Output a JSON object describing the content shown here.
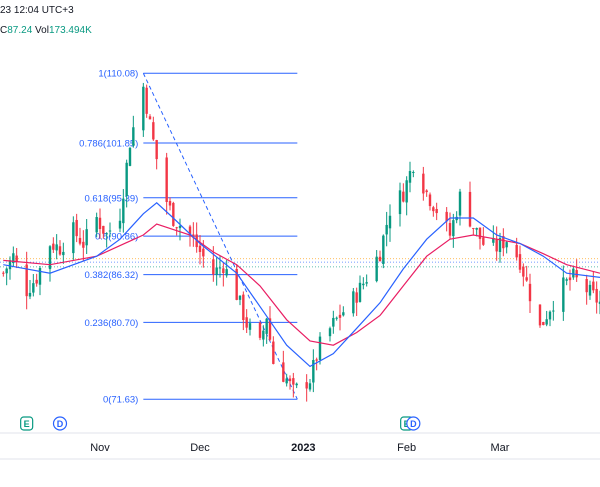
{
  "header": {
    "datetime": "23 12:04 UTC+3",
    "close_label": "C",
    "close_value": "87.24",
    "volume_label": "Vol",
    "volume_value": "173.494K"
  },
  "colors": {
    "up": "#089981",
    "down": "#f23645",
    "fib": "#2962ff",
    "ma_fast": "#2962ff",
    "ma_slow": "#e91e63",
    "earnings_badge": "#089981",
    "dividend_badge": "#2962ff"
  },
  "event_badges": [
    {
      "type": "earnings",
      "letter": "E",
      "date": "2022-10-10"
    },
    {
      "type": "earnings",
      "letter": "E",
      "date": "2023-02-01"
    },
    {
      "type": "dividend",
      "letter": "D",
      "date": "2022-10-20"
    },
    {
      "type": "dividend",
      "letter": "D",
      "date": "2023-02-03"
    }
  ],
  "chart_data": {
    "type": "candlestick",
    "ylim": [
      68,
      114
    ],
    "x_range": [
      "2022-10-02",
      "2023-03-31"
    ],
    "x_ticks": [
      {
        "label": "Nov",
        "date": "2022-11-01",
        "bold": false
      },
      {
        "label": "Dec",
        "date": "2022-12-01",
        "bold": false
      },
      {
        "label": "2023",
        "date": "2023-01-01",
        "bold": true
      },
      {
        "label": "Feb",
        "date": "2023-02-01",
        "bold": false
      },
      {
        "label": "Mar",
        "date": "2023-03-01",
        "bold": false
      }
    ],
    "fibonacci": {
      "start_date": "2022-11-14",
      "end_date": "2022-12-29",
      "high": 110.08,
      "low": 71.63,
      "levels": [
        {
          "ratio": "1",
          "value": 110.08,
          "label": "1(110.08)"
        },
        {
          "ratio": "0.786",
          "value": 101.85,
          "label": "0.786(101.85)"
        },
        {
          "ratio": "0.618",
          "value": 95.39,
          "label": "0.618(95.39)"
        },
        {
          "ratio": "0.5",
          "value": 90.86,
          "label": "0.5(90.86)"
        },
        {
          "ratio": "0.382",
          "value": 86.32,
          "label": "0.382(86.32)"
        },
        {
          "ratio": "0.236",
          "value": 80.7,
          "label": "0.236(80.70)"
        },
        {
          "ratio": "0",
          "value": 71.63,
          "label": "0(71.63)"
        }
      ]
    },
    "reference_lines": [
      {
        "value": 87.8,
        "color": "#2962ff"
      },
      {
        "value": 87.24,
        "color": "#089981"
      },
      {
        "value": 88.2,
        "color": "#ff9800"
      }
    ],
    "close_path": [
      [
        "2022-10-03",
        86.5
      ],
      [
        "2022-10-06",
        88.5
      ],
      [
        "2022-10-10",
        84.5
      ],
      [
        "2022-10-13",
        86.0
      ],
      [
        "2022-10-17",
        90.0
      ],
      [
        "2022-10-20",
        89.5
      ],
      [
        "2022-10-24",
        91.5
      ],
      [
        "2022-10-27",
        90.0
      ],
      [
        "2022-10-31",
        93.0
      ],
      [
        "2022-11-03",
        91.0
      ],
      [
        "2022-11-07",
        93.5
      ],
      [
        "2022-11-10",
        102.0
      ],
      [
        "2022-11-14",
        108.5
      ],
      [
        "2022-11-16",
        104.0
      ],
      [
        "2022-11-18",
        100.0
      ],
      [
        "2022-11-21",
        95.0
      ],
      [
        "2022-11-23",
        93.0
      ],
      [
        "2022-11-28",
        91.0
      ],
      [
        "2022-12-01",
        89.0
      ],
      [
        "2022-12-05",
        86.5
      ],
      [
        "2022-12-08",
        87.5
      ],
      [
        "2022-12-12",
        84.0
      ],
      [
        "2022-12-15",
        80.5
      ],
      [
        "2022-12-19",
        78.0
      ],
      [
        "2022-12-21",
        81.5
      ],
      [
        "2022-12-23",
        76.0
      ],
      [
        "2022-12-27",
        74.0
      ],
      [
        "2022-12-29",
        72.5
      ],
      [
        "2023-01-03",
        74.0
      ],
      [
        "2023-01-06",
        78.0
      ],
      [
        "2023-01-10",
        80.5
      ],
      [
        "2023-01-13",
        82.0
      ],
      [
        "2023-01-17",
        84.0
      ],
      [
        "2023-01-20",
        86.0
      ],
      [
        "2023-01-24",
        89.0
      ],
      [
        "2023-01-27",
        94.0
      ],
      [
        "2023-01-31",
        96.0
      ],
      [
        "2023-02-03",
        99.5
      ],
      [
        "2023-02-07",
        96.0
      ],
      [
        "2023-02-10",
        94.0
      ],
      [
        "2023-02-14",
        91.0
      ],
      [
        "2023-02-17",
        95.5
      ],
      [
        "2023-02-21",
        92.0
      ],
      [
        "2023-02-24",
        90.0
      ],
      [
        "2023-02-28",
        89.5
      ],
      [
        "2023-03-03",
        90.5
      ],
      [
        "2023-03-07",
        88.0
      ],
      [
        "2023-03-10",
        84.0
      ],
      [
        "2023-03-13",
        80.0
      ],
      [
        "2023-03-16",
        82.5
      ],
      [
        "2023-03-20",
        85.0
      ],
      [
        "2023-03-23",
        86.0
      ],
      [
        "2023-03-27",
        84.5
      ],
      [
        "2023-03-31",
        83.0
      ]
    ],
    "ma_fast": [
      [
        "2022-10-03",
        87.5
      ],
      [
        "2022-10-17",
        86.5
      ],
      [
        "2022-10-31",
        88.5
      ],
      [
        "2022-11-07",
        90.5
      ],
      [
        "2022-11-14",
        93.5
      ],
      [
        "2022-11-18",
        94.8
      ],
      [
        "2022-11-23",
        93.0
      ],
      [
        "2022-12-01",
        90.0
      ],
      [
        "2022-12-12",
        86.5
      ],
      [
        "2022-12-20",
        82.0
      ],
      [
        "2022-12-27",
        78.0
      ],
      [
        "2023-01-03",
        75.5
      ],
      [
        "2023-01-10",
        77.0
      ],
      [
        "2023-01-17",
        80.0
      ],
      [
        "2023-01-24",
        83.0
      ],
      [
        "2023-01-31",
        87.0
      ],
      [
        "2023-02-07",
        90.5
      ],
      [
        "2023-02-14",
        93.0
      ],
      [
        "2023-02-21",
        93.0
      ],
      [
        "2023-02-28",
        91.0
      ],
      [
        "2023-03-07",
        90.0
      ],
      [
        "2023-03-14",
        88.5
      ],
      [
        "2023-03-21",
        86.5
      ],
      [
        "2023-03-31",
        86.0
      ]
    ],
    "ma_slow": [
      [
        "2022-10-03",
        88.0
      ],
      [
        "2022-10-17",
        87.5
      ],
      [
        "2022-10-31",
        88.5
      ],
      [
        "2022-11-14",
        91.0
      ],
      [
        "2022-11-18",
        92.3
      ],
      [
        "2022-11-28",
        91.0
      ],
      [
        "2022-12-05",
        89.0
      ],
      [
        "2022-12-12",
        87.5
      ],
      [
        "2022-12-19",
        85.0
      ],
      [
        "2022-12-27",
        81.0
      ],
      [
        "2023-01-03",
        78.5
      ],
      [
        "2023-01-10",
        78.0
      ],
      [
        "2023-01-17",
        79.5
      ],
      [
        "2023-01-24",
        81.5
      ],
      [
        "2023-01-31",
        85.0
      ],
      [
        "2023-02-07",
        88.5
      ],
      [
        "2023-02-14",
        90.5
      ],
      [
        "2023-02-21",
        91.0
      ],
      [
        "2023-02-28",
        90.5
      ],
      [
        "2023-03-07",
        90.0
      ],
      [
        "2023-03-14",
        88.8
      ],
      [
        "2023-03-21",
        87.5
      ],
      [
        "2023-03-31",
        86.5
      ]
    ]
  }
}
